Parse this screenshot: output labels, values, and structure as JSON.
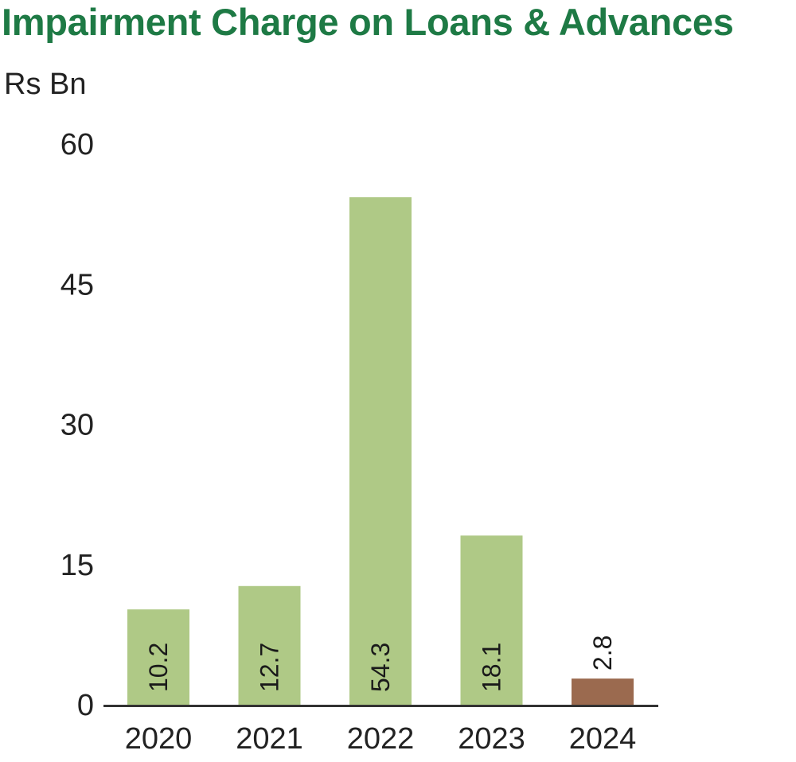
{
  "chart_data": {
    "type": "bar",
    "title": "Impairment Charge on Loans & Advances",
    "ylabel": "Rs Bn",
    "xlabel": "",
    "categories": [
      "2020",
      "2021",
      "2022",
      "2023",
      "2024"
    ],
    "values": [
      10.2,
      12.7,
      54.3,
      18.1,
      2.8
    ],
    "data_labels": [
      "10.2",
      "12.7",
      "54.3",
      "18.1",
      "2.8"
    ],
    "ylim": [
      0,
      60
    ],
    "yticks": [
      "0",
      "15",
      "30",
      "45",
      "60"
    ],
    "grid": false,
    "legend": "none",
    "colors": {
      "bar": "#afc986",
      "highlight": "#9b6a4f",
      "highlight_index": 4,
      "title": "#1e7a45",
      "axis": "#333333"
    }
  }
}
